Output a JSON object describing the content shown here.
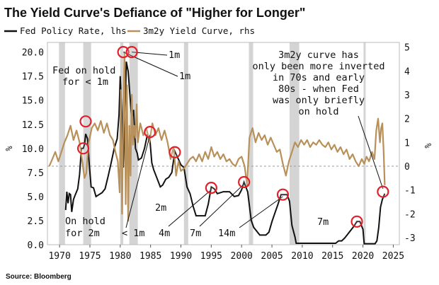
{
  "title": "The Yield Curve's Defiance of \"Higher for Longer\"",
  "source": "Source: Bloomberg",
  "chart_data": {
    "type": "line",
    "xlim": [
      1968,
      2026
    ],
    "x_ticks": [
      1970,
      1975,
      1980,
      1985,
      1990,
      1995,
      2000,
      2005,
      2010,
      2015,
      2020,
      2025
    ],
    "y_left": {
      "unit": "%",
      "lim": [
        0,
        21
      ],
      "ticks": [
        0.0,
        2.5,
        5.0,
        7.5,
        10.0,
        12.5,
        15.0,
        17.5,
        20.0
      ],
      "tick_labels": [
        "0.0",
        "2.5",
        "5.0",
        "7.5",
        "10.0",
        "12.5",
        "15.0",
        "17.5",
        "20.0"
      ]
    },
    "y_right": {
      "unit": "%",
      "lim": [
        -3.3,
        5.2
      ],
      "ticks": [
        -3,
        -2,
        -1,
        0,
        1,
        2,
        3,
        4,
        5
      ],
      "tick_labels": [
        "-3",
        "-2",
        "-1",
        "0",
        "1",
        "2",
        "3",
        "4",
        "5"
      ]
    },
    "legend": {
      "placement": "top-left"
    },
    "recessions": [
      [
        1969.9,
        1970.9
      ],
      [
        1973.9,
        1975.2
      ],
      [
        1980.0,
        1980.5
      ],
      [
        1981.5,
        1982.9
      ],
      [
        1990.5,
        1991.2
      ],
      [
        2001.2,
        2001.9
      ],
      [
        2007.9,
        2009.5
      ],
      [
        2020.1,
        2020.4
      ]
    ],
    "series": [
      {
        "name": "Fed Policy Rate, lhs",
        "axis": "left",
        "color": "#111111",
        "x": [
          1971.0,
          1971.2,
          1971.4,
          1971.6,
          1971.8,
          1972.0,
          1972.3,
          1972.6,
          1973.0,
          1973.3,
          1973.6,
          1973.9,
          1974.1,
          1974.3,
          1974.6,
          1974.9,
          1975.2,
          1975.6,
          1976.0,
          1976.5,
          1977.0,
          1977.5,
          1978.0,
          1978.5,
          1979.0,
          1979.5,
          1979.8,
          1980.0,
          1980.3,
          1980.5,
          1980.8,
          1981.0,
          1981.3,
          1981.6,
          1981.9,
          1982.2,
          1982.5,
          1982.8,
          1983.0,
          1983.5,
          1984.0,
          1984.5,
          1984.9,
          1985.2,
          1985.5,
          1986.0,
          1986.6,
          1987.0,
          1987.5,
          1988.0,
          1988.5,
          1989.0,
          1989.5,
          1990.0,
          1990.5,
          1991.0,
          1991.5,
          1992.0,
          1992.5,
          1993.0,
          1994.0,
          1994.5,
          1995.0,
          1995.5,
          1996.0,
          1997.0,
          1998.0,
          1998.8,
          1999.5,
          2000.0,
          2000.4,
          2001.0,
          2001.3,
          2001.6,
          2002.0,
          2003.0,
          2003.5,
          2004.0,
          2004.5,
          2005.0,
          2005.5,
          2006.0,
          2006.5,
          2007.0,
          2007.5,
          2007.9,
          2008.3,
          2008.8,
          2009.0,
          2012.0,
          2015.5,
          2016.0,
          2016.5,
          2017.0,
          2017.5,
          2018.0,
          2018.5,
          2019.0,
          2019.5,
          2020.0,
          2020.2,
          2020.5,
          2022.0,
          2022.3,
          2022.6,
          2022.9,
          2023.2,
          2023.6
        ],
        "y": [
          3.6,
          5.5,
          4.3,
          5.3,
          5.2,
          3.4,
          4.7,
          5.2,
          5.8,
          7.3,
          10.0,
          10.0,
          10.4,
          11.5,
          11.0,
          8.3,
          6.0,
          5.9,
          5.0,
          5.2,
          5.4,
          5.8,
          7.1,
          8.5,
          10.0,
          11.0,
          13.5,
          17.5,
          13.0,
          8.0,
          14.0,
          19.0,
          18.0,
          15.5,
          13.0,
          14.0,
          10.0,
          9.5,
          8.8,
          9.0,
          10.0,
          11.5,
          10.8,
          8.5,
          7.8,
          7.0,
          6.0,
          6.2,
          6.8,
          7.0,
          7.5,
          9.7,
          9.0,
          8.3,
          8.0,
          6.0,
          5.3,
          4.0,
          3.0,
          3.0,
          3.0,
          4.2,
          6.0,
          5.8,
          5.3,
          5.5,
          5.5,
          5.0,
          5.1,
          5.7,
          6.5,
          5.5,
          4.0,
          2.5,
          1.8,
          1.0,
          1.0,
          1.0,
          1.3,
          2.4,
          3.3,
          4.2,
          5.2,
          5.2,
          5.2,
          4.5,
          2.0,
          0.8,
          0.15,
          0.15,
          0.15,
          0.4,
          0.4,
          0.7,
          1.1,
          1.5,
          1.9,
          2.4,
          2.4,
          1.6,
          0.1,
          0.1,
          0.1,
          0.4,
          1.8,
          3.9,
          4.7,
          5.3
        ]
      },
      {
        "name": "3m2y Yield Curve, rhs",
        "axis": "right",
        "color": "#b8905a",
        "x": [
          1968.3,
          1968.8,
          1969.3,
          1969.8,
          1970.3,
          1970.8,
          1971.3,
          1971.8,
          1972.3,
          1972.8,
          1973.3,
          1973.8,
          1974.1,
          1974.4,
          1974.8,
          1975.3,
          1975.8,
          1976.3,
          1976.8,
          1977.3,
          1977.8,
          1978.3,
          1978.8,
          1979.2,
          1979.6,
          1979.9,
          1980.1,
          1980.3,
          1980.5,
          1980.7,
          1980.9,
          1981.1,
          1981.3,
          1981.5,
          1981.7,
          1981.9,
          1982.1,
          1982.3,
          1982.5,
          1982.7,
          1982.9,
          1983.3,
          1983.8,
          1984.3,
          1984.8,
          1985.3,
          1985.8,
          1986.3,
          1986.8,
          1987.3,
          1987.8,
          1988.3,
          1988.8,
          1989.2,
          1989.6,
          1990.0,
          1990.5,
          1991.0,
          1991.5,
          1992.0,
          1992.5,
          1993.0,
          1993.5,
          1994.0,
          1994.5,
          1995.0,
          1995.5,
          1996.0,
          1996.5,
          1997.0,
          1997.5,
          1998.0,
          1998.5,
          1999.0,
          1999.5,
          2000.0,
          2000.5,
          2000.9,
          2001.3,
          2001.8,
          2002.3,
          2002.8,
          2003.3,
          2003.8,
          2004.3,
          2004.8,
          2005.3,
          2005.8,
          2006.3,
          2006.8,
          2007.3,
          2007.8,
          2008.3,
          2008.8,
          2009.3,
          2009.8,
          2010.3,
          2010.8,
          2011.3,
          2011.8,
          2012.3,
          2012.8,
          2013.3,
          2013.8,
          2014.3,
          2014.8,
          2015.3,
          2015.8,
          2016.3,
          2016.8,
          2017.3,
          2017.8,
          2018.3,
          2018.8,
          2019.3,
          2019.8,
          2020.2,
          2020.6,
          2021.0,
          2021.5,
          2021.9,
          2022.2,
          2022.5,
          2022.8,
          2023.0,
          2023.2,
          2023.4,
          2023.6
        ],
        "y": [
          0.0,
          0.3,
          0.6,
          0.2,
          0.6,
          1.0,
          1.3,
          1.7,
          1.1,
          1.5,
          1.0,
          0.1,
          -0.5,
          -0.3,
          1.0,
          1.6,
          1.8,
          1.5,
          1.9,
          1.4,
          1.8,
          1.3,
          1.1,
          0.6,
          0.2,
          -1.1,
          3.2,
          -2.0,
          1.9,
          4.8,
          -1.6,
          3.4,
          -2.3,
          1.7,
          -0.4,
          3.0,
          0.9,
          1.7,
          1.2,
          2.6,
          1.0,
          1.8,
          1.3,
          1.6,
          1.0,
          1.8,
          1.3,
          1.6,
          1.1,
          1.5,
          1.0,
          0.3,
          0.8,
          -0.4,
          0.2,
          -0.2,
          -0.1,
          0.1,
          0.3,
          0.4,
          0.2,
          0.5,
          0.2,
          0.6,
          0.3,
          0.8,
          0.4,
          0.6,
          0.3,
          0.5,
          0.2,
          0.3,
          0.1,
          0.0,
          0.3,
          0.4,
          0.0,
          -0.8,
          1.2,
          1.6,
          1.0,
          1.4,
          1.1,
          1.3,
          0.9,
          1.2,
          0.9,
          0.6,
          0.7,
          0.1,
          -0.4,
          0.2,
          0.6,
          1.0,
          0.8,
          1.1,
          0.9,
          1.1,
          0.8,
          1.0,
          0.9,
          1.1,
          0.9,
          0.8,
          1.0,
          0.7,
          0.9,
          0.6,
          0.8,
          0.5,
          0.7,
          0.3,
          0.5,
          0.2,
          0.0,
          0.3,
          0.1,
          0.4,
          0.2,
          0.6,
          0.3,
          1.5,
          2.0,
          1.0,
          1.6,
          1.8,
          0.7,
          -0.8
        ]
      }
    ],
    "markers": [
      {
        "axis": "left",
        "x": 1973.9,
        "y": 10.0
      },
      {
        "axis": "left",
        "x": 1974.3,
        "y": 12.8
      },
      {
        "axis": "left",
        "x": 1980.5,
        "y": 20.0
      },
      {
        "axis": "left",
        "x": 1981.9,
        "y": 20.0
      },
      {
        "axis": "left",
        "x": 1984.9,
        "y": 11.7
      },
      {
        "axis": "left",
        "x": 1989.0,
        "y": 9.6
      },
      {
        "axis": "left",
        "x": 1995.0,
        "y": 5.9
      },
      {
        "axis": "left",
        "x": 2000.4,
        "y": 6.5
      },
      {
        "axis": "left",
        "x": 2006.8,
        "y": 5.2
      },
      {
        "axis": "left",
        "x": 2019.0,
        "y": 2.4
      },
      {
        "axis": "left",
        "x": 2023.3,
        "y": 5.5
      }
    ],
    "annotations": [
      {
        "lines": [
          "Fed on hold",
          "for < 1m"
        ],
        "pointer": null
      },
      {
        "lines": [
          "1m"
        ],
        "pointer": {
          "x": 1981.9,
          "y": 20.0
        }
      },
      {
        "lines": [
          "1m"
        ],
        "pointer": {
          "x": 1980.5,
          "y": 20.0
        }
      },
      {
        "lines": [
          "3m2y curve has",
          "only been more inverted",
          "in 70s and early",
          "80s - when Fed",
          "was only briefly",
          "on hold"
        ],
        "pointer": {
          "x": 2023.3,
          "y": 5.8
        }
      },
      {
        "lines": [
          "2m"
        ],
        "pointer": null
      },
      {
        "lines": [
          "On hold",
          "for 2m"
        ],
        "pointer": null
      },
      {
        "lines": [
          "< 1m"
        ],
        "pointer": {
          "x": 1984.9,
          "y": 11.4
        }
      },
      {
        "lines": [
          "4m"
        ],
        "pointer": {
          "x": 1995.0,
          "y": 5.7
        }
      },
      {
        "lines": [
          "7m"
        ],
        "pointer": {
          "x": 2000.4,
          "y": 6.3
        }
      },
      {
        "lines": [
          "14m"
        ],
        "pointer": {
          "x": 2006.8,
          "y": 5.0
        }
      },
      {
        "lines": [
          "7m"
        ],
        "pointer": null
      }
    ]
  }
}
